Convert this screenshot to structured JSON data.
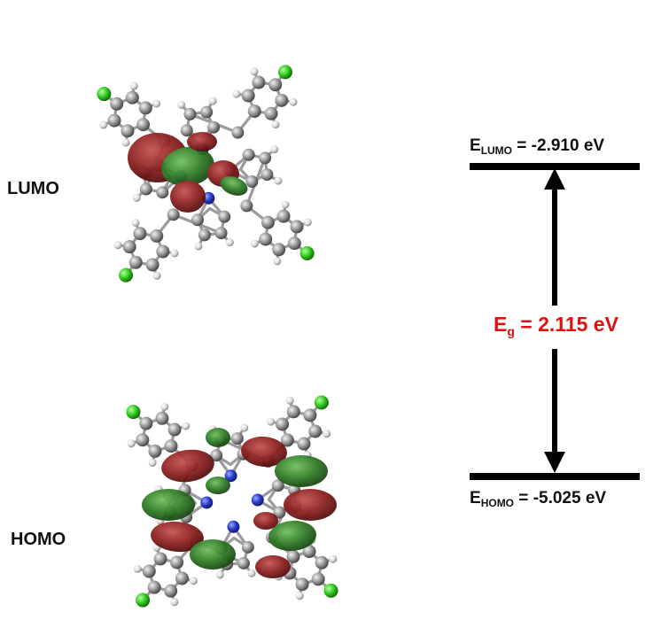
{
  "orbitals": {
    "lumo_label": "LUMO",
    "homo_label": "HOMO"
  },
  "levels": {
    "lumo": {
      "symbol": "E",
      "subscript": "LUMO",
      "eq": " = ",
      "value": "-2.910 eV"
    },
    "homo": {
      "symbol": "E",
      "subscript": "HOMO",
      "eq": " = ",
      "value": "-5.025 eV"
    }
  },
  "gap": {
    "symbol": "E",
    "subscript": "g",
    "eq": " = ",
    "value": "2.115 eV"
  },
  "colors": {
    "carbon": "#9a9a9a",
    "hydrogen": "#e2e2e2",
    "nitrogen": "#2a3fd0",
    "chlorine": "#33cc22",
    "lobe_positive": "#8b1e1e",
    "lobe_negative": "#2d7a24",
    "gap_text": "#e01010",
    "level_line": "#000000"
  }
}
